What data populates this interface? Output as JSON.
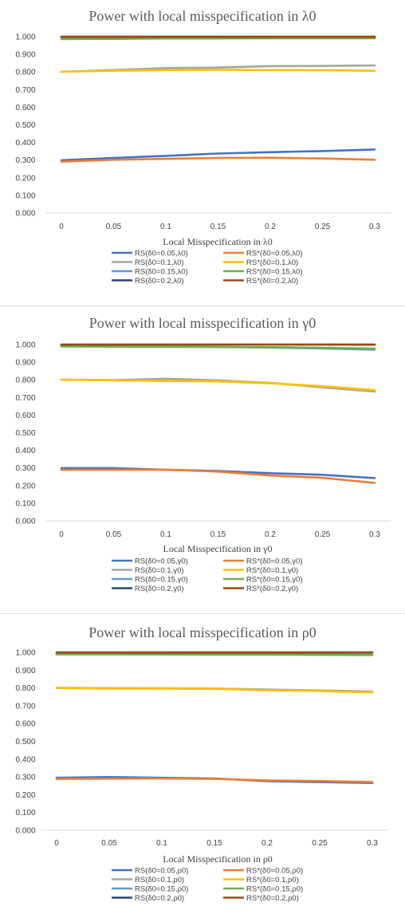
{
  "chart_data": [
    {
      "type": "line",
      "title": "Power with local misspecification in λ0",
      "xlabel": "Local Misspecification in λ0",
      "ylabel": "",
      "ylim": [
        0,
        1
      ],
      "y_ticks": [
        "0.000",
        "0.100",
        "0.200",
        "0.300",
        "0.400",
        "0.500",
        "0.600",
        "0.700",
        "0.800",
        "0.900",
        "1.000"
      ],
      "categories": [
        "0",
        "0.05",
        "0.1",
        "0.15",
        "0.2",
        "0.25",
        "0.3"
      ],
      "grid": false,
      "legend_position": "bottom",
      "series": [
        {
          "name": "RS(δ0=0.05,λ0)",
          "color": "#4472c4",
          "values": [
            0.299,
            0.312,
            0.324,
            0.337,
            0.345,
            0.351,
            0.36
          ]
        },
        {
          "name": "RS*(δ0=0.05,λ0)",
          "color": "#ed7d31",
          "values": [
            0.291,
            0.302,
            0.307,
            0.312,
            0.313,
            0.309,
            0.302
          ]
        },
        {
          "name": "RS(δ0=0.1,λ0)",
          "color": "#a5a5a5",
          "values": [
            0.801,
            0.811,
            0.822,
            0.825,
            0.833,
            0.834,
            0.837
          ]
        },
        {
          "name": "RS*(δ0=0.1,λ0)",
          "color": "#ffc000",
          "values": [
            0.801,
            0.807,
            0.811,
            0.812,
            0.811,
            0.81,
            0.807
          ]
        },
        {
          "name": "RS(δ0=0.15,λ0)",
          "color": "#5b9bd5",
          "values": [
            0.988,
            0.989,
            0.991,
            0.992,
            0.993,
            0.993,
            0.994
          ]
        },
        {
          "name": "RS*(δ0=0.15,λ0)",
          "color": "#70ad47",
          "values": [
            0.987,
            0.988,
            0.99,
            0.99,
            0.991,
            0.991,
            0.991
          ]
        },
        {
          "name": "RS(δ0=0.2,λ0)",
          "color": "#264478",
          "values": [
            1.0,
            1.0,
            1.0,
            1.0,
            1.0,
            1.0,
            1.0
          ]
        },
        {
          "name": "RS*(δ0=0.2,λ0)",
          "color": "#9e480e",
          "values": [
            0.999,
            0.999,
            0.999,
            0.999,
            0.999,
            0.999,
            0.999
          ]
        }
      ]
    },
    {
      "type": "line",
      "title": "Power with local misspecification in γ0",
      "xlabel": "Local Misspecification in γ0",
      "ylabel": "",
      "ylim": [
        0,
        1
      ],
      "y_ticks": [
        "0.000",
        "0.100",
        "0.200",
        "0.300",
        "0.400",
        "0.500",
        "0.600",
        "0.700",
        "0.800",
        "0.900",
        "1.000"
      ],
      "categories": [
        "0",
        "0.05",
        "0.1",
        "0.15",
        "0.2",
        "0.25",
        "0.3"
      ],
      "grid": false,
      "legend_position": "bottom",
      "series": [
        {
          "name": "RS(δ0=0.05,γ0)",
          "color": "#4472c4",
          "values": [
            0.299,
            0.299,
            0.289,
            0.283,
            0.27,
            0.261,
            0.242
          ]
        },
        {
          "name": "RS*(δ0=0.05,γ0)",
          "color": "#ed7d31",
          "values": [
            0.289,
            0.29,
            0.29,
            0.279,
            0.257,
            0.244,
            0.215
          ]
        },
        {
          "name": "RS(δ0=0.1,γ0)",
          "color": "#a5a5a5",
          "values": [
            0.801,
            0.798,
            0.806,
            0.797,
            0.783,
            0.757,
            0.733
          ]
        },
        {
          "name": "RS*(δ0=0.1,γ0)",
          "color": "#ffc000",
          "values": [
            0.801,
            0.797,
            0.793,
            0.791,
            0.78,
            0.764,
            0.741
          ]
        },
        {
          "name": "RS(δ0=0.15,γ0)",
          "color": "#5b9bd5",
          "values": [
            0.99,
            0.989,
            0.988,
            0.986,
            0.983,
            0.978,
            0.971
          ]
        },
        {
          "name": "RS*(δ0=0.15,γ0)",
          "color": "#70ad47",
          "values": [
            0.989,
            0.988,
            0.988,
            0.986,
            0.985,
            0.982,
            0.977
          ]
        },
        {
          "name": "RS(δ0=0.2,γ0)",
          "color": "#264478",
          "values": [
            1.0,
            1.0,
            1.0,
            1.0,
            1.0,
            1.0,
            0.999
          ]
        },
        {
          "name": "RS*(δ0=0.2,γ0)",
          "color": "#9e480e",
          "values": [
            1.0,
            1.0,
            1.0,
            1.0,
            1.0,
            1.0,
            1.0
          ]
        }
      ]
    },
    {
      "type": "line",
      "title": "Power with local misspecification in ρ0",
      "xlabel": "Local Misspecification in ρ0",
      "ylabel": "",
      "ylim": [
        0,
        1
      ],
      "y_ticks": [
        "0.000",
        "0.100",
        "0.200",
        "0.300",
        "0.400",
        "0.500",
        "0.600",
        "0.700",
        "0.800",
        "0.900",
        "1.000"
      ],
      "categories": [
        "0",
        "0.05",
        "0.1",
        "0.15",
        "0.2",
        "0.25",
        "0.3"
      ],
      "grid": false,
      "legend_position": "bottom",
      "series": [
        {
          "name": "RS(δ0=0.05,ρ0)",
          "color": "#4472c4",
          "values": [
            0.295,
            0.299,
            0.295,
            0.291,
            0.276,
            0.271,
            0.266
          ]
        },
        {
          "name": "RS*(δ0=0.05,ρ0)",
          "color": "#ed7d31",
          "values": [
            0.289,
            0.29,
            0.291,
            0.289,
            0.28,
            0.277,
            0.271
          ]
        },
        {
          "name": "RS(δ0=0.1,ρ0)",
          "color": "#a5a5a5",
          "values": [
            0.801,
            0.799,
            0.798,
            0.797,
            0.791,
            0.786,
            0.78
          ]
        },
        {
          "name": "RS*(δ0=0.1,ρ0)",
          "color": "#ffc000",
          "values": [
            0.8,
            0.796,
            0.796,
            0.795,
            0.787,
            0.783,
            0.775
          ]
        },
        {
          "name": "RS(δ0=0.15,ρ0)",
          "color": "#5b9bd5",
          "values": [
            0.99,
            0.99,
            0.989,
            0.989,
            0.989,
            0.988,
            0.987
          ]
        },
        {
          "name": "RS*(δ0=0.15,ρ0)",
          "color": "#70ad47",
          "values": [
            0.989,
            0.989,
            0.989,
            0.988,
            0.988,
            0.986,
            0.985
          ]
        },
        {
          "name": "RS(δ0=0.2,ρ0)",
          "color": "#264478",
          "values": [
            1.0,
            1.0,
            1.0,
            1.0,
            1.0,
            1.0,
            1.0
          ]
        },
        {
          "name": "RS*(δ0=0.2,ρ0)",
          "color": "#9e480e",
          "values": [
            0.999,
            0.999,
            0.999,
            0.999,
            0.999,
            0.999,
            0.999
          ]
        }
      ]
    }
  ]
}
